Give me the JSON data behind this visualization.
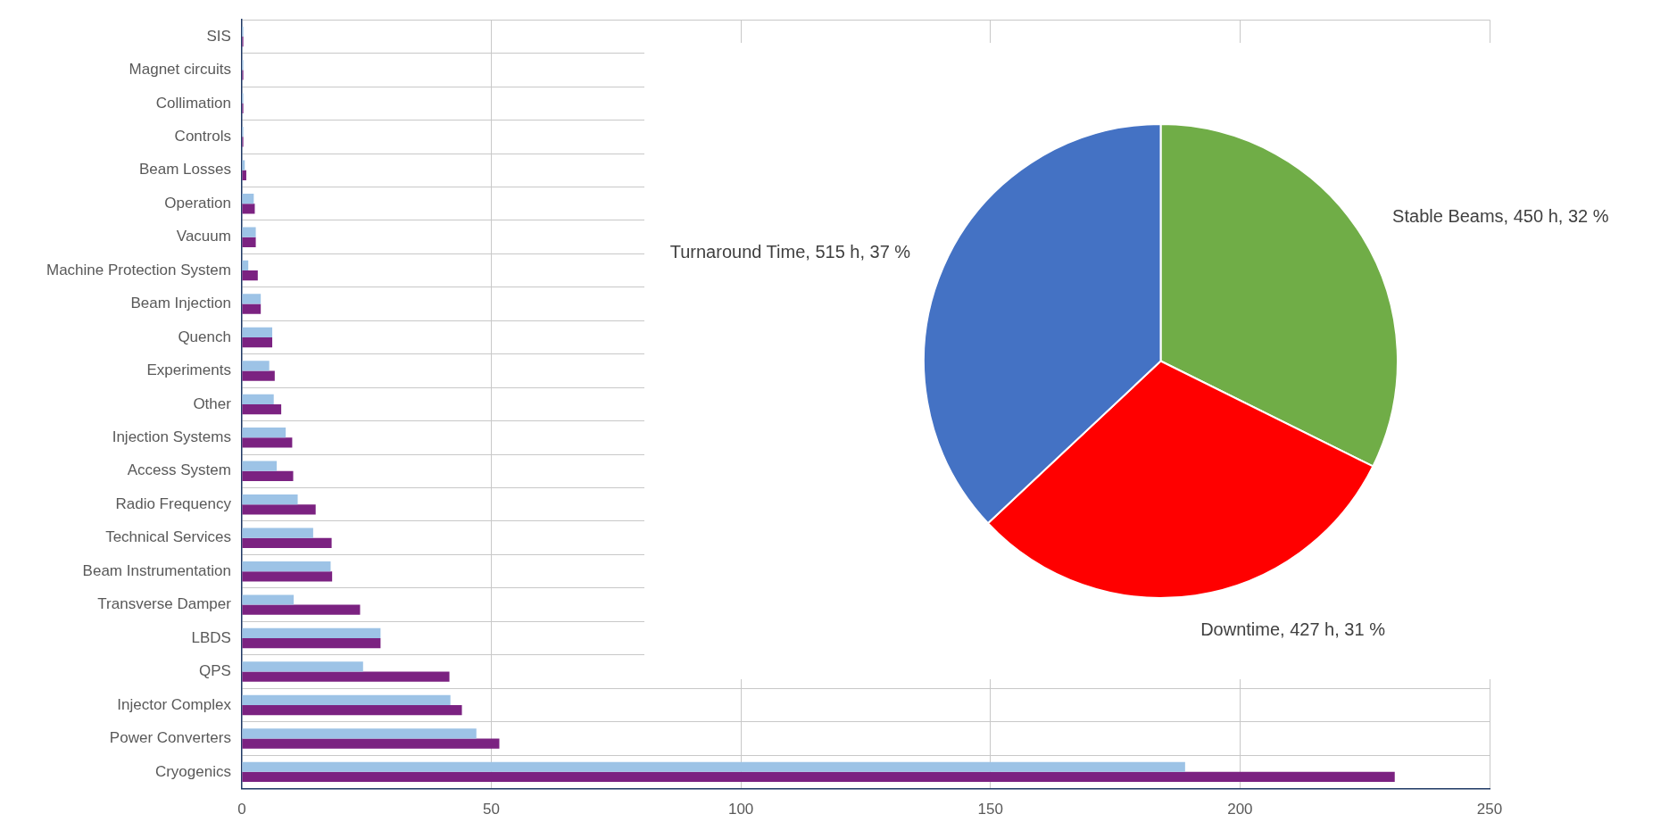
{
  "chart_data": [
    {
      "type": "bar",
      "orientation": "horizontal",
      "categories": [
        "SIS",
        "Magnet circuits",
        "Collimation",
        "Controls",
        "Beam Losses",
        "Operation",
        "Vacuum",
        "Machine Protection System",
        "Beam Injection",
        "Quench",
        "Experiments",
        "Other",
        "Injection Systems",
        "Access System",
        "Radio Frequency",
        "Technical Services",
        "Beam Instrumentation",
        "Transverse Damper",
        "LBDS",
        "QPS",
        "Injector Complex",
        "Power Converters",
        "Cryogenics"
      ],
      "series": [
        {
          "color": "#9dc3e6",
          "values": [
            0.3,
            0.3,
            0.3,
            0.3,
            0.6,
            2.4,
            2.8,
            1.3,
            3.8,
            6.1,
            5.5,
            6.4,
            8.8,
            7.0,
            11.2,
            14.3,
            17.8,
            10.4,
            27.8,
            24.3,
            41.8,
            47.0,
            189
          ]
        },
        {
          "color": "#7b2281",
          "values": [
            0.3,
            0.3,
            0.3,
            0.3,
            0.9,
            2.6,
            2.8,
            3.2,
            3.8,
            6.1,
            6.6,
            7.9,
            10.1,
            10.3,
            14.8,
            18.0,
            18.1,
            23.7,
            27.8,
            41.6,
            44.1,
            51.6,
            231
          ]
        }
      ],
      "xlim": [
        0,
        250
      ],
      "xticks": [
        0,
        50,
        100,
        150,
        200,
        250
      ],
      "grid": true,
      "legend": false
    },
    {
      "type": "pie",
      "categories": [
        "Stable Beams, 450 h, 32 %",
        "Downtime, 427 h, 31 %",
        "Turnaround Time, 515 h, 37 %"
      ],
      "values": [
        450,
        427,
        515
      ],
      "colors": [
        "#70ad47",
        "#ff0000",
        "#4472c4"
      ],
      "legend": false
    }
  ]
}
